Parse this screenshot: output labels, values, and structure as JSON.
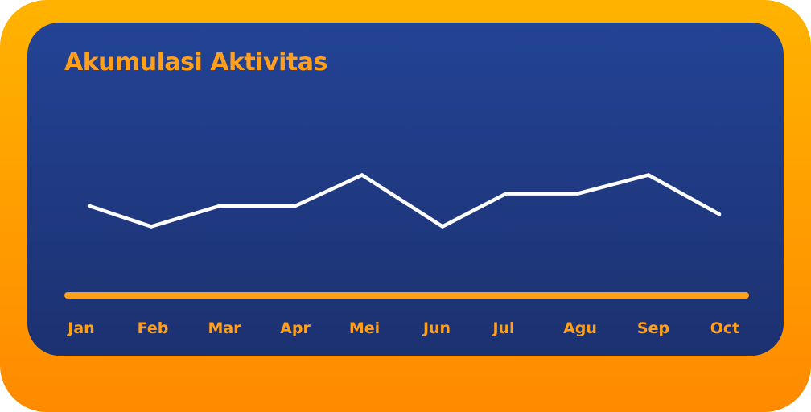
{
  "chart_data": {
    "type": "line",
    "title": "Akumulasi Aktivitas",
    "categories": [
      "Jan",
      "Feb",
      "Mar",
      "Apr",
      "Mei",
      "Jun",
      "Jul",
      "Agu",
      "Sep",
      "Oct"
    ],
    "values": [
      4.3,
      3.3,
      4.3,
      4.3,
      5.8,
      3.3,
      4.9,
      4.9,
      5.8,
      3.9
    ],
    "ylim": [
      0,
      10
    ],
    "grid": false,
    "legend": "none",
    "colors": {
      "line": "#ffffff",
      "axis": "#ff9f1a",
      "labels": "#ff9f1a",
      "title": "#ff9f1a",
      "card_background": "#223f8c",
      "frame_background": "#ff9a00"
    }
  }
}
